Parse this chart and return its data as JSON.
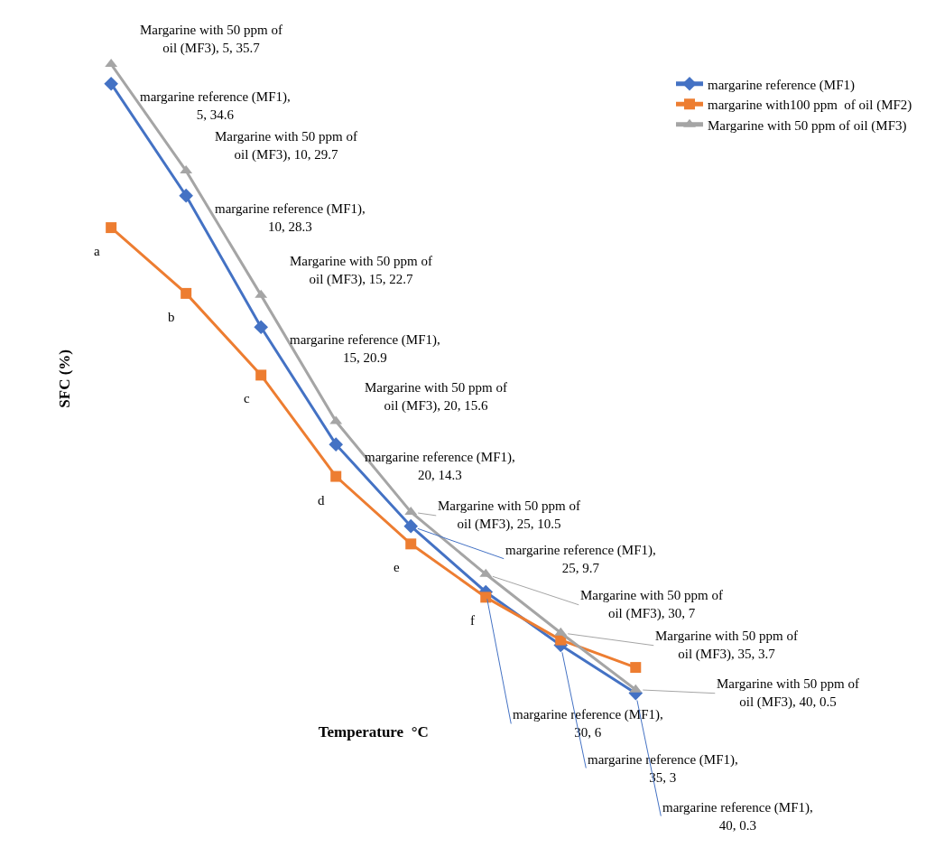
{
  "chart_data": {
    "type": "line",
    "xlabel": "Temperature  °C",
    "ylabel": "SFC (%)",
    "categories": [
      null,
      null,
      null,
      null,
      null,
      null,
      null,
      null
    ],
    "legend": "right",
    "series": [
      {
        "name": "margarine reference (MF1)",
        "color": "#4472c4",
        "marker": "diamond",
        "values": [
          34.6,
          28.3,
          20.9,
          14.3,
          9.7,
          6,
          3,
          0.3
        ],
        "value_labels": [
          "margarine reference (MF1), 5, 34.6",
          "margarine reference (MF1), 10, 28.3",
          "margarine reference (MF1), 15, 20.9",
          "margarine reference (MF1), 20, 14.3",
          "margarine reference (MF1), 25, 9.7",
          "margarine reference (MF1), 30, 6",
          "margarine reference (MF1), 35, 3",
          "margarine reference (MF1), 40, 0.3"
        ]
      },
      {
        "name": "margarine with100 ppm  of oil (MF2)",
        "color": "#ed7d31",
        "marker": "square",
        "values": [
          26.5,
          22.8,
          18.2,
          12.5,
          8.7,
          5.7,
          3.3,
          1.75
        ],
        "value_labels": [
          "a",
          "b",
          "c",
          "d",
          "e",
          "f",
          null,
          null
        ]
      },
      {
        "name": "Margarine with 50 ppm of oil (MF3)",
        "color": "#a5a5a5",
        "marker": "triangle",
        "values": [
          35.7,
          29.7,
          22.7,
          15.6,
          10.5,
          7,
          3.7,
          0.5
        ],
        "value_labels": [
          "Margarine with 50 ppm of oil (MF3), 5, 35.7",
          "Margarine with 50 ppm of oil (MF3), 10, 29.7",
          "Margarine with 50 ppm of oil (MF3), 15, 22.7",
          "Margarine with 50 ppm of oil (MF3), 20, 15.6",
          "Margarine with 50 ppm of oil (MF3), 25, 10.5",
          "Margarine with 50 ppm of oil (MF3), 30, 7",
          "Margarine with 50 ppm of oil (MF3), 35, 3.7",
          "Margarine with 50 ppm of oil (MF3), 40, 0.5"
        ]
      }
    ]
  }
}
